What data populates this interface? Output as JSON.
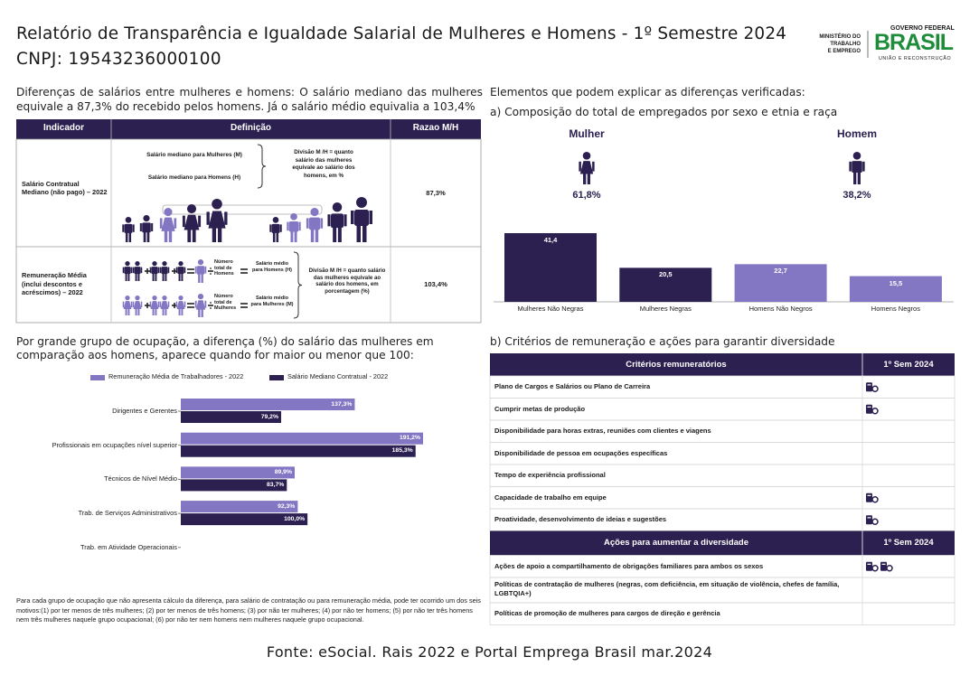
{
  "header": {
    "title": "Relatório de Transparência e Igualdade Salarial de Mulheres e Homens - 1º Semestre 2024",
    "cnpj": "CNPJ: 19543236000100",
    "ministry": [
      "MINISTÉRIO DO",
      "TRABALHO",
      "E EMPREGO"
    ],
    "government": "GOVERNO FEDERAL",
    "brand": "BRASIL",
    "slogan": "UNIÃO E RECONSTRUÇÃO"
  },
  "intro": "Diferenças de salários entre mulheres e homens: O salário mediano das mulheres equivale a 87,3% do recebido pelos homens. Já o salário médio equivalia a 103,4%",
  "salary_table": {
    "columns": [
      "Indicador",
      "Definição",
      "Razao M/H"
    ],
    "rows": [
      {
        "indicator": "Salário Contratual Mediano (não pago) – 2022",
        "women_label": "Salário mediano para Mulheres (M)",
        "men_label": "Salário mediano para Homens (H)",
        "note": "Divisão M /H = quanto salário das mulheres equivale ao salário dos homens, em %",
        "ratio": "87,3%"
      },
      {
        "indicator": "Remuneração Média (inclui descontos e acréscimos) – 2022",
        "men_count": "Número total de Homens",
        "men_label": "Salário médio para Homens (H)",
        "women_count": "Número total de Mulheres",
        "women_label": "Salário médio para Mulheres (M)",
        "note": "Divisão M /H = quanto salário das mulheres equivale ao salário dos homens, em porcentagem (%)",
        "ratio": "103,4%"
      }
    ]
  },
  "composition": {
    "heading": "Elementos que podem explicar as diferenças verificadas:",
    "subheading": "a) Composição do total de empregados por sexo e etnia e raça",
    "women": {
      "label": "Mulher",
      "share": "61,8%"
    },
    "men": {
      "label": "Homem",
      "share": "38,2%"
    }
  },
  "occupation": {
    "heading": "Por grande grupo de ocupação, a diferença (%) do salário das mulheres em comparação aos homens, aparece quando for maior ou menor que 100:"
  },
  "chart_data": [
    {
      "type": "bar",
      "categories": [
        "Mulheres Não Negras",
        "Mulheres Negras",
        "Homens Não Negros",
        "Homens Negros"
      ],
      "values": [
        41.4,
        20.5,
        22.7,
        15.5
      ],
      "value_labels": [
        "41,4",
        "20,5",
        "22,7",
        "15,5"
      ],
      "colors": [
        "#2b2050",
        "#2b2050",
        "#8377c4",
        "#8377c4"
      ]
    },
    {
      "type": "hbar",
      "categories": [
        "Dirigentes e Gerentes",
        "Profissionais em ocupações nível superior",
        "Técnicos de Nível Médio",
        "Trab. de Serviços Administrativos",
        "Trab. em Atividade Operacionais"
      ],
      "series": [
        {
          "name": "Remuneração Média de Trabalhadores - 2022",
          "color": "#8377c4",
          "values": [
            137.3,
            191.2,
            89.9,
            92.3,
            null
          ],
          "value_labels": [
            "137,3%",
            "191,2%",
            "89,9%",
            "92,3%",
            null
          ]
        },
        {
          "name": "Salário Mediano Contratual - 2022",
          "color": "#2b2050",
          "values": [
            79.2,
            185.3,
            83.7,
            100.0,
            null
          ],
          "value_labels": [
            "79,2%",
            "185,3%",
            "83,7%",
            "100,0%",
            null
          ]
        }
      ],
      "legend": "top"
    }
  ],
  "criteria": {
    "heading": "b) Critérios de remuneração e ações para garantir diversidade",
    "sections": [
      {
        "title": "Critérios remuneratórios",
        "period": "1º Sem 2024",
        "rows": [
          {
            "label": "Plano de Cargos e Salários ou Plano de Carreira",
            "icons": 1
          },
          {
            "label": "Cumprir metas de produção",
            "icons": 1
          },
          {
            "label": "Disponibilidade para horas extras, reuniões com clientes e viagens",
            "icons": 0
          },
          {
            "label": "Disponibilidade de pessoa em ocupações específicas",
            "icons": 0
          },
          {
            "label": "Tempo de experiência profissional",
            "icons": 0
          },
          {
            "label": "Capacidade de trabalho em equipe",
            "icons": 1
          },
          {
            "label": "Proatividade, desenvolvimento de ideias e sugestões",
            "icons": 1
          }
        ]
      },
      {
        "title": "Ações para aumentar a diversidade",
        "period": "1º Sem 2024",
        "rows": [
          {
            "label": "Ações de apoio a compartilhamento de obrigações familiares para ambos os sexos",
            "icons": 2
          },
          {
            "label": "Políticas de contratação de mulheres (negras, com deficiência, em situação de violência, chefes de família, LGBTQIA+)",
            "icons": 0
          },
          {
            "label": "Políticas de promoção de mulheres para cargos de direção e gerência",
            "icons": 0
          }
        ]
      }
    ]
  },
  "footnote": "Para cada grupo de ocupação que não apresenta cálculo da diferença, para salário de contratação ou para remuneração média, pode ter ocorrido um dos seis motivos:(1) por ter menos de três mulheres; (2) por ter menos de três homens; (3) por não ter mulheres; (4) por não ter homens; (5) por não ter três homens nem três mulheres naquele grupo ocupacional; (6) por não ter nem homens nem mulheres naquele grupo ocupacional.",
  "source": "Fonte: eSocial. Rais 2022 e Portal Emprega Brasil mar.2024"
}
